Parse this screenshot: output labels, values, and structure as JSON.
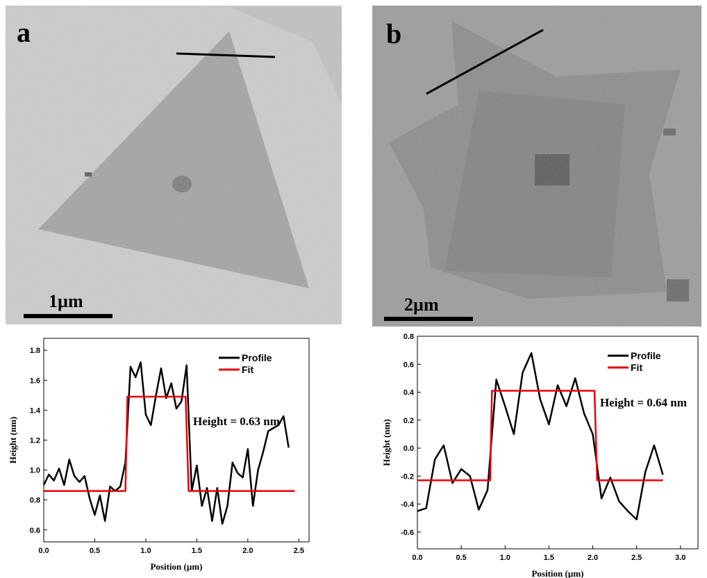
{
  "panels": [
    {
      "label": "a",
      "scale_bar": "1µm"
    },
    {
      "label": "b",
      "scale_bar": "2µm"
    }
  ],
  "chart_data": [
    {
      "type": "line",
      "x_label": "Position (µm)",
      "y_label": "Height (nm)",
      "annotation": "Height = 0.63 nm",
      "legend": "upper right",
      "xlim": [
        0,
        2.6
      ],
      "ylim": [
        0.52,
        1.88
      ],
      "xticks": [
        {
          "value": 0,
          "label": "0.0"
        },
        0.5,
        {
          "value": 1,
          "label": "1.0"
        },
        1.5,
        {
          "value": 2,
          "label": "2.0"
        },
        2.5
      ],
      "yticks": [
        0.6,
        0.8,
        {
          "value": 1,
          "label": "1.0"
        },
        1.2,
        1.4,
        1.6,
        1.8
      ],
      "series": [
        {
          "name": "Profile",
          "color": "#000000",
          "x": [
            0,
            0.05,
            0.1,
            0.15,
            0.2,
            0.25,
            0.3,
            0.35,
            0.4,
            0.45,
            0.5,
            0.55,
            0.6,
            0.65,
            0.7,
            0.75,
            0.8,
            0.85,
            0.9,
            0.95,
            1,
            1.05,
            1.1,
            1.15,
            1.2,
            1.25,
            1.3,
            1.35,
            1.4,
            1.45,
            1.5,
            1.55,
            1.6,
            1.65,
            1.7,
            1.75,
            1.8,
            1.85,
            1.9,
            1.95,
            2,
            2.05,
            2.1,
            2.15,
            2.2,
            2.25,
            2.3,
            2.35,
            2.4
          ],
          "values": [
            0.9,
            0.97,
            0.93,
            1.01,
            0.9,
            1.07,
            0.96,
            0.92,
            0.96,
            0.81,
            0.7,
            0.83,
            0.66,
            0.89,
            0.86,
            0.89,
            1.05,
            1.69,
            1.62,
            1.72,
            1.37,
            1.3,
            1.5,
            1.68,
            1.48,
            1.58,
            1.41,
            1.46,
            1.7,
            0.86,
            1.03,
            0.76,
            0.88,
            0.66,
            0.88,
            0.64,
            0.76,
            1.05,
            0.98,
            0.95,
            1.14,
            0.76,
            1.0,
            1.12,
            1.26,
            1.28,
            1.3,
            1.36,
            1.15
          ]
        },
        {
          "name": "Fit",
          "color": "#e8000b",
          "x": [
            0,
            0.8,
            0.82,
            1.39,
            1.42,
            2.46
          ],
          "values": [
            0.86,
            0.86,
            1.49,
            1.49,
            0.86,
            0.86
          ]
        }
      ]
    },
    {
      "type": "line",
      "x_label": "Position (µm)",
      "y_label": "Height (nm)",
      "annotation": "Height = 0.64 nm",
      "legend": "upper right",
      "xlim": [
        0,
        3.2
      ],
      "ylim": [
        -0.72,
        0.8
      ],
      "xticks": [
        {
          "value": 0,
          "label": "0.0"
        },
        0.5,
        {
          "value": 1,
          "label": "1.0"
        },
        1.5,
        {
          "value": 2,
          "label": "2.0"
        },
        2.5,
        {
          "value": 3,
          "label": "3.0"
        }
      ],
      "yticks": [
        -0.6,
        -0.4,
        -0.2,
        {
          "value": 0,
          "label": "0.0"
        },
        0.2,
        0.4,
        0.6,
        0.8
      ],
      "series": [
        {
          "name": "Profile",
          "color": "#000000",
          "x": [
            0,
            0.1,
            0.2,
            0.3,
            0.4,
            0.5,
            0.6,
            0.7,
            0.8,
            0.9,
            1,
            1.1,
            1.2,
            1.3,
            1.4,
            1.5,
            1.6,
            1.7,
            1.8,
            1.9,
            2,
            2.1,
            2.2,
            2.3,
            2.4,
            2.5,
            2.6,
            2.7,
            2.8
          ],
          "values": [
            -0.45,
            -0.43,
            -0.08,
            0.02,
            -0.25,
            -0.15,
            -0.2,
            -0.44,
            -0.3,
            0.49,
            0.3,
            0.1,
            0.54,
            0.68,
            0.35,
            0.17,
            0.45,
            0.3,
            0.5,
            0.25,
            0.1,
            -0.36,
            -0.21,
            -0.38,
            -0.45,
            -0.51,
            -0.17,
            0.02,
            -0.19
          ]
        },
        {
          "name": "Fit",
          "color": "#e8000b",
          "x": [
            0,
            0.83,
            0.85,
            2.02,
            2.05,
            2.8
          ],
          "values": [
            -0.23,
            -0.23,
            0.41,
            0.41,
            -0.23,
            -0.23
          ]
        }
      ]
    }
  ]
}
